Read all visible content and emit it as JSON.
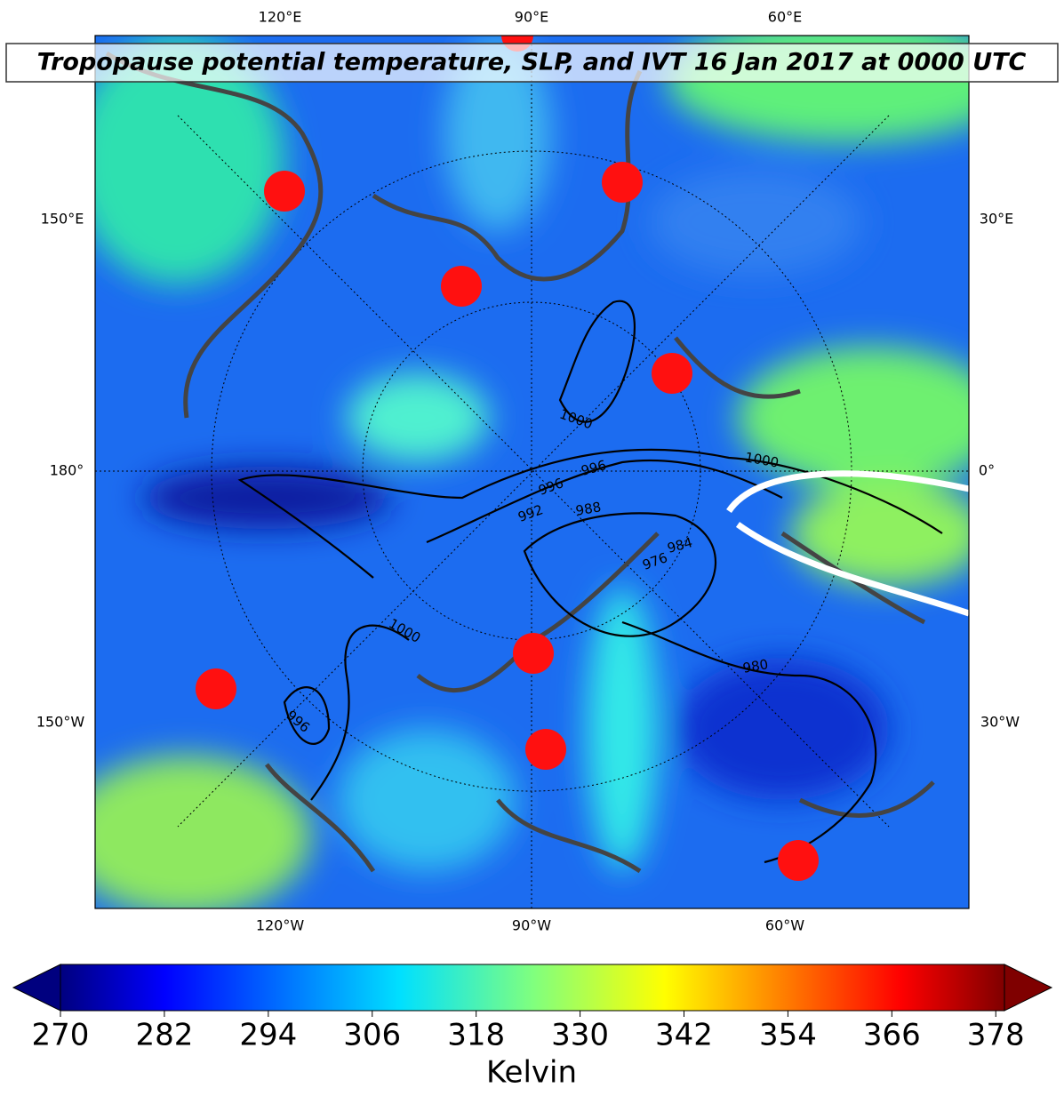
{
  "title": "Tropopause potential temperature, SLP, and IVT 16 Jan 2017 at 0000 UTC",
  "longitude_labels": {
    "top": [
      "120°E",
      "90°E",
      "60°E"
    ],
    "bottom": [
      "120°W",
      "90°W",
      "60°W"
    ],
    "left": [
      "150°E",
      "180°",
      "150°W"
    ],
    "right": [
      "30°E",
      "0°",
      "30°W"
    ]
  },
  "contour_labels": [
    "1000",
    "1000",
    "996",
    "996",
    "992",
    "988",
    "984",
    "976",
    "980",
    "1000",
    "996"
  ],
  "colorbar": {
    "label": "Kelvin",
    "range": [
      270,
      379
    ],
    "ticks": [
      270,
      282,
      294,
      306,
      318,
      330,
      342,
      354,
      366,
      378
    ]
  }
}
